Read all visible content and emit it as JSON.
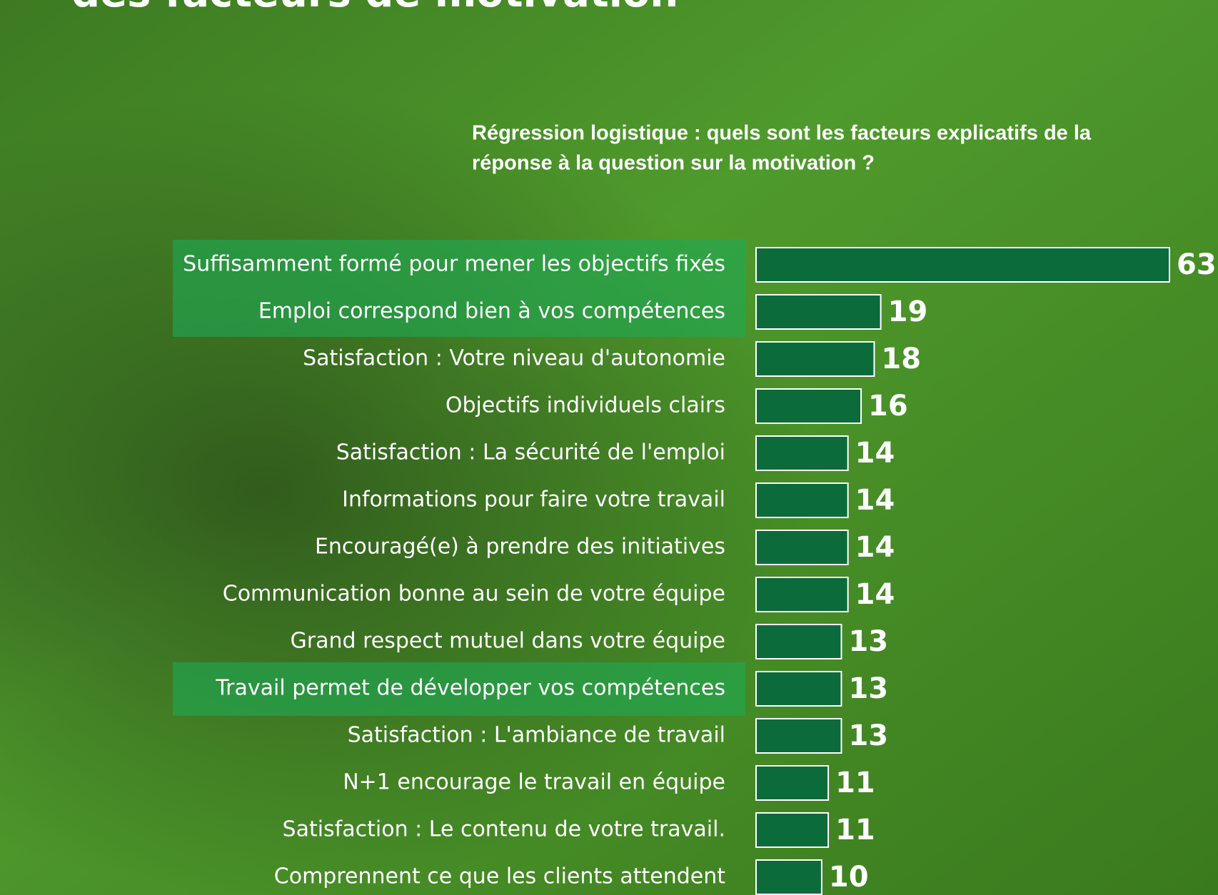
{
  "chart_data": {
    "type": "bar",
    "title": "des facteurs de motivation",
    "subtitle": [
      "Régression logistique : quels sont les facteurs explicatifs de la",
      "réponse à la question sur la motivation ?"
    ],
    "categories": [
      "Suffisamment formé pour mener les objectifs fixés",
      "Emploi correspond bien à vos compétences",
      "Satisfaction : Votre niveau d'autonomie",
      "Objectifs individuels clairs",
      "Satisfaction : La sécurité de l'emploi",
      "Informations pour faire votre travail",
      "Encouragé(e) à prendre des initiatives",
      "Communication bonne au sein de votre équipe",
      "Grand respect mutuel dans votre équipe",
      "Travail permet de développer vos compétences",
      "Satisfaction : L'ambiance de travail",
      "N+1 encourage le travail en équipe",
      "Satisfaction : Le contenu de votre travail.",
      "Comprennent ce que les clients attendent"
    ],
    "values": [
      63,
      19,
      18,
      16,
      14,
      14,
      14,
      14,
      13,
      13,
      13,
      11,
      11,
      10
    ],
    "color": "#0b6b3a"
  }
}
